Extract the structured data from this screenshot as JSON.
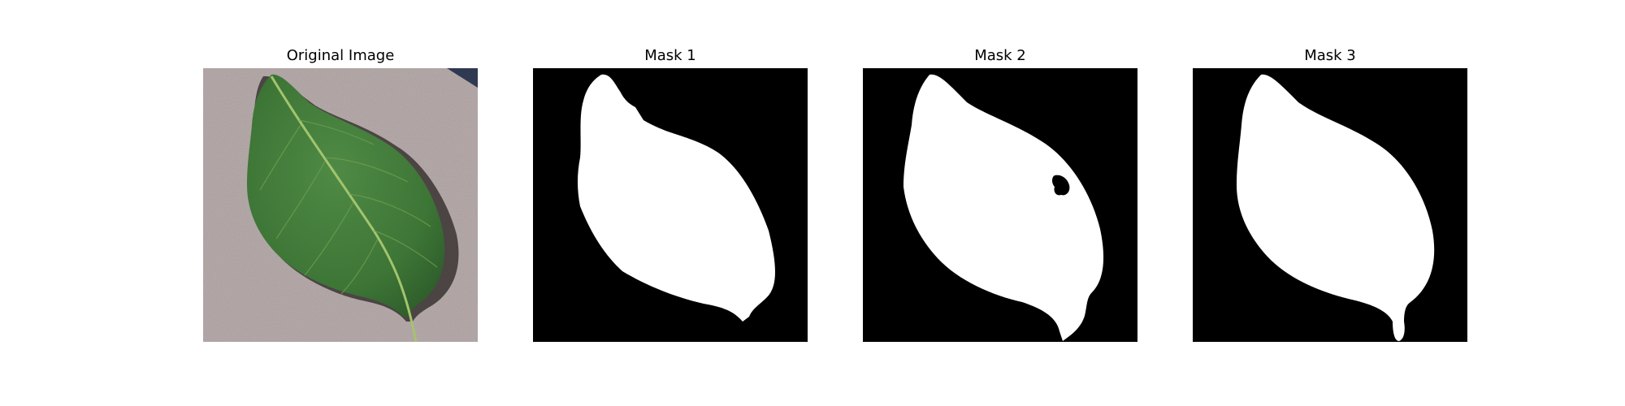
{
  "panels": [
    {
      "title": "Original Image",
      "kind": "photo"
    },
    {
      "title": "Mask 1",
      "kind": "mask"
    },
    {
      "title": "Mask 2",
      "kind": "mask"
    },
    {
      "title": "Mask 3",
      "kind": "mask"
    }
  ],
  "colors": {
    "background": "#ffffff",
    "mask_background": "#000000",
    "mask_foreground": "#ffffff",
    "surface": "#b5aaa9",
    "leaf": "#3e7a37",
    "vein": "#9fc06a"
  }
}
